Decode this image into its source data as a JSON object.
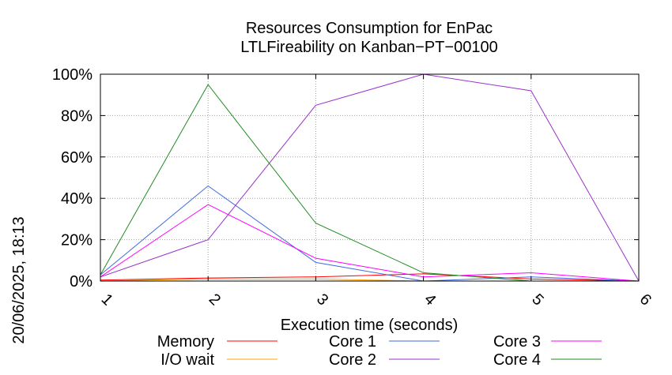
{
  "chart_data": {
    "type": "line",
    "title": "Resources Consumption for EnPac",
    "subtitle": "LTLFireability on Kanban−PT−00100",
    "xlabel": "Execution time (seconds)",
    "ylabel": "",
    "side_label": "20/06/2025, 18:13",
    "x": [
      1,
      2,
      3,
      4,
      5,
      6
    ],
    "xlim": [
      1,
      6
    ],
    "ylim": [
      0,
      100
    ],
    "yticks": [
      {
        "value": 0,
        "label": "0%"
      },
      {
        "value": 20,
        "label": "20%"
      },
      {
        "value": 40,
        "label": "40%"
      },
      {
        "value": 60,
        "label": "60%"
      },
      {
        "value": 80,
        "label": "80%"
      },
      {
        "value": 100,
        "label": "100%"
      }
    ],
    "xticks": [
      "1",
      "2",
      "3",
      "4",
      "5",
      "6"
    ],
    "grid": true,
    "legend_position": "bottom",
    "series": [
      {
        "name": "Memory",
        "color": "#ff0000",
        "values": [
          0.5,
          1.5,
          2,
          3.5,
          1,
          0
        ]
      },
      {
        "name": "I/O wait",
        "color": "#ffa500",
        "values": [
          0,
          1,
          1,
          0,
          0,
          0
        ]
      },
      {
        "name": "Core 1",
        "color": "#4169e1",
        "values": [
          3,
          46,
          9,
          0,
          2,
          0
        ]
      },
      {
        "name": "Core 2",
        "color": "#9932cc",
        "values": [
          2,
          20,
          85,
          100,
          92,
          0
        ]
      },
      {
        "name": "Core 3",
        "color": "#ff00ff",
        "values": [
          2,
          37,
          11,
          2,
          4,
          0
        ]
      },
      {
        "name": "Core 4",
        "color": "#228b22",
        "values": [
          3,
          95,
          28,
          4,
          0,
          0
        ]
      }
    ]
  }
}
